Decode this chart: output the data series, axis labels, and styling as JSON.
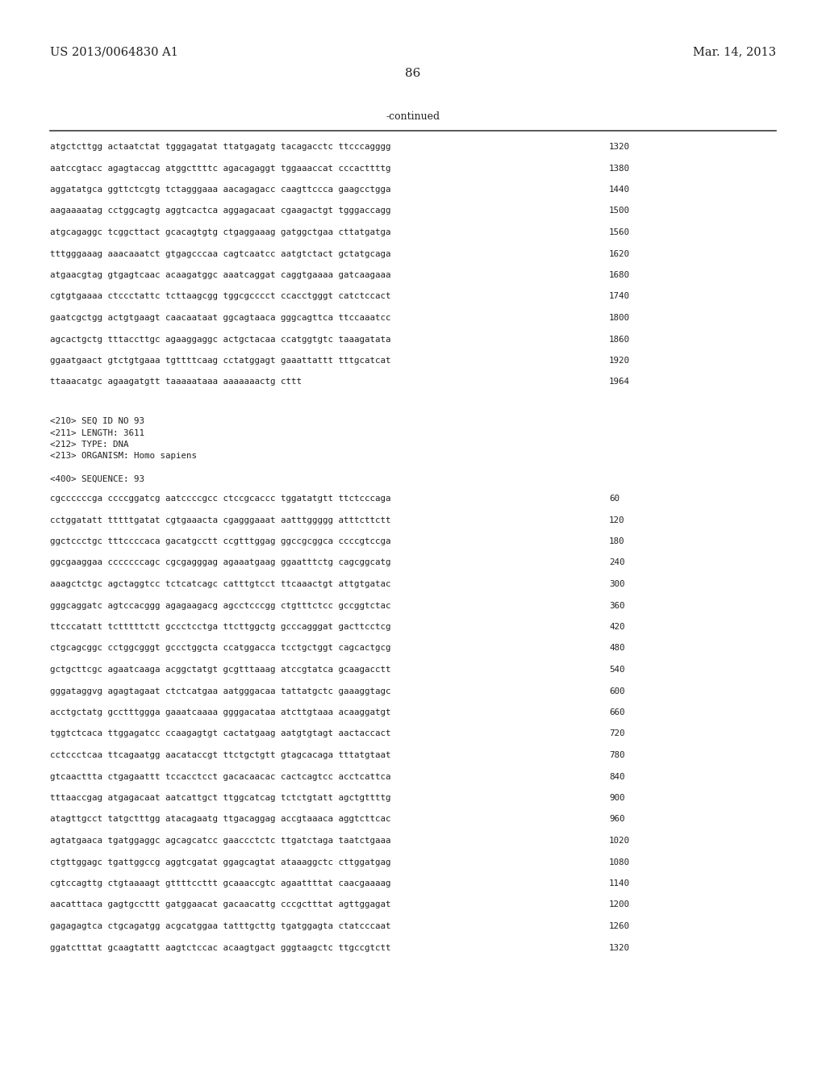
{
  "header_left": "US 2013/0064830 A1",
  "header_right": "Mar. 14, 2013",
  "page_number": "86",
  "continued_label": "-continued",
  "background_color": "#ffffff",
  "text_color": "#231f20",
  "lines_top": [
    {
      "text": "atgctcttgg actaatctat tgggagatat ttatgagatg tacagacctc ttcccagggg",
      "num": "1320"
    },
    {
      "text": "aatccgtacc agagtaccag atggcttttc agacagaggt tggaaaccat cccacttttg",
      "num": "1380"
    },
    {
      "text": "aggatatgca ggttctcgtg tctagggaaa aacagagacc caagttccca gaagcctgga",
      "num": "1440"
    },
    {
      "text": "aagaaaatag cctggcagtg aggtcactca aggagacaat cgaagactgt tgggaccagg",
      "num": "1500"
    },
    {
      "text": "atgcagaggc tcggcttact gcacagtgtg ctgaggaaag gatggctgaa cttatgatga",
      "num": "1560"
    },
    {
      "text": "tttgggaaag aaacaaatct gtgagcccaa cagtcaatcc aatgtctact gctatgcaga",
      "num": "1620"
    },
    {
      "text": "atgaacgtag gtgagtcaac acaagatggc aaatcaggat caggtgaaaa gatcaagaaa",
      "num": "1680"
    },
    {
      "text": "cgtgtgaaaa ctccctattc tcttaagcgg tggcgcccct ccacctgggt catctccact",
      "num": "1740"
    },
    {
      "text": "gaatcgctgg actgtgaagt caacaataat ggcagtaaca gggcagttca ttccaaatcc",
      "num": "1800"
    },
    {
      "text": "agcactgctg tttaccttgc agaaggaggc actgctacaa ccatggtgtc taaagatata",
      "num": "1860"
    },
    {
      "text": "ggaatgaact gtctgtgaaa tgttttcaag cctatggagt gaaattattt tttgcatcat",
      "num": "1920"
    },
    {
      "text": "ttaaacatgc agaagatgtt taaaaataaa aaaaaaactg cttt",
      "num": "1964"
    }
  ],
  "metadata_lines": [
    "<210> SEQ ID NO 93",
    "<211> LENGTH: 3611",
    "<212> TYPE: DNA",
    "<213> ORGANISM: Homo sapiens"
  ],
  "sequence_label": "<400> SEQUENCE: 93",
  "lines_bottom": [
    {
      "text": "cgccccccga ccccggatcg aatccccgcc ctccgcaccc tggatatgtt ttctcccaga",
      "num": "60"
    },
    {
      "text": "cctggatatt tttttgatat cgtgaaacta cgagggaaat aatttggggg atttcttctt",
      "num": "120"
    },
    {
      "text": "ggctccctgc tttccccaca gacatgcctt ccgtttggag ggccgcggca ccccgtccga",
      "num": "180"
    },
    {
      "text": "ggcgaaggaa cccccccagc cgcgagggag agaaatgaag ggaatttctg cagcggcatg",
      "num": "240"
    },
    {
      "text": "aaagctctgc agctaggtcc tctcatcagc catttgtcct ttcaaactgt attgtgatac",
      "num": "300"
    },
    {
      "text": "gggcaggatc agtccacggg agagaagacg agcctcccgg ctgtttctcc gccggtctac",
      "num": "360"
    },
    {
      "text": "ttcccatatt tctttttctt gccctcctga ttcttggctg gcccagggat gacttcctcg",
      "num": "420"
    },
    {
      "text": "ctgcagcggc cctggcgggt gccctggcta ccatggacca tcctgctggt cagcactgcg",
      "num": "480"
    },
    {
      "text": "gctgcttcgc agaatcaaga acggctatgt gcgtttaaag atccgtatca gcaagacctt",
      "num": "540"
    },
    {
      "text": "gggataggvg agagtagaat ctctcatgaa aatgggacaa tattatgctc gaaaggtagc",
      "num": "600"
    },
    {
      "text": "acctgctatg gcctttggga gaaatcaaaa ggggacataa atcttgtaaa acaaggatgt",
      "num": "660"
    },
    {
      "text": "tggtctcaca ttggagatcc ccaagagtgt cactatgaag aatgtgtagt aactaccact",
      "num": "720"
    },
    {
      "text": "cctccctcaa ttcagaatgg aacataccgt ttctgctgtt gtagcacaga tttatgtaat",
      "num": "780"
    },
    {
      "text": "gtcaacttta ctgagaattt tccacctcct gacacaacac cactcagtcc acctcattca",
      "num": "840"
    },
    {
      "text": "tttaaccgag atgagacaat aatcattgct ttggcatcag tctctgtatt agctgttttg",
      "num": "900"
    },
    {
      "text": "atagttgcct tatgctttgg atacagaatg ttgacaggag accgtaaaca aggtcttcac",
      "num": "960"
    },
    {
      "text": "agtatgaaca tgatggaggc agcagcatcc gaaccctctc ttgatctaga taatctgaaa",
      "num": "1020"
    },
    {
      "text": "ctgttggagc tgattggccg aggtcgatat ggagcagtat ataaaggctc cttggatgag",
      "num": "1080"
    },
    {
      "text": "cgtccagttg ctgtaaaagt gttttccttt gcaaaccgtc agaattttat caacgaaaag",
      "num": "1140"
    },
    {
      "text": "aacatttaca gagtgccttt gatggaacat gacaacattg cccgctttat agttggagat",
      "num": "1200"
    },
    {
      "text": "gagagagtca ctgcagatgg acgcatggaa tatttgcttg tgatggagta ctatcccaat",
      "num": "1260"
    },
    {
      "text": "ggatctttat gcaagtattt aagtctccac acaagtgact gggtaagctc ttgccgtctt",
      "num": "1320"
    }
  ]
}
